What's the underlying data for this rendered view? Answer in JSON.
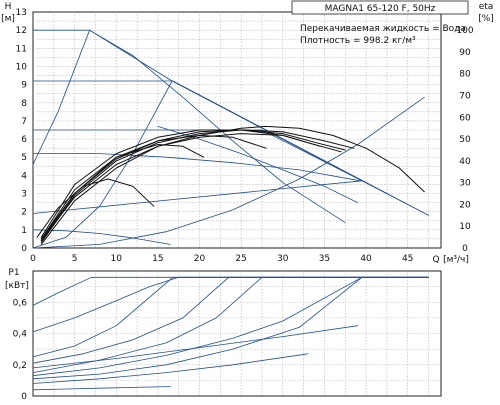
{
  "chart_data": [
    {
      "type": "line",
      "title": "MAGNA1 65-120 F, 50Hz",
      "info_lines": [
        "Перекачиваемая жидкость = Вода",
        "Плотность = 998.2 кг/м³"
      ],
      "ylabel": "H",
      "yunit": "[м]",
      "xlabel": "Q",
      "xunit": "[м³/ч]",
      "y2label": "eta",
      "y2unit": "[%]",
      "xlim": [
        0,
        49
      ],
      "ylim": [
        0,
        13
      ],
      "y2lim": [
        0,
        108.33
      ],
      "xticks": [
        0,
        5,
        10,
        15,
        20,
        25,
        30,
        35,
        40,
        45
      ],
      "yticks": [
        0,
        1,
        2,
        3,
        4,
        5,
        6,
        7,
        8,
        9,
        10,
        11,
        12,
        13
      ],
      "y2ticks": [
        0,
        10,
        20,
        30,
        40,
        50,
        60,
        70,
        80,
        90,
        100
      ],
      "grid": true,
      "series": [
        {
          "name": "",
          "kind": "max_curve",
          "color": "#1f4e8c",
          "x": [
            0,
            6.8,
            16.7,
            39.5,
            47.5
          ],
          "y": [
            12.0,
            12.0,
            9.2,
            3.7,
            1.8
          ]
        },
        {
          "name": "",
          "kind": "const_curve",
          "color": "#1f4e8c",
          "x": [
            0,
            16.8,
            47.5
          ],
          "y": [
            9.2,
            9.2,
            1.8
          ]
        },
        {
          "name": "",
          "kind": "const_curve",
          "color": "#1f4e8c",
          "x": [
            0,
            27.5,
            39.5
          ],
          "y": [
            6.5,
            6.5,
            3.7
          ]
        },
        {
          "name": "",
          "kind": "const_curve",
          "color": "#1f4e8c",
          "x": [
            0,
            8,
            16,
            24,
            32,
            39.3
          ],
          "y": [
            5.2,
            5.2,
            5.0,
            4.7,
            4.3,
            3.7
          ]
        },
        {
          "name": "",
          "kind": "prop_curve",
          "color": "#1f4e8c",
          "x": [
            0,
            39.5
          ],
          "y": [
            1.9,
            3.7
          ]
        },
        {
          "name": "",
          "kind": "min_curve",
          "color": "#1f4e8c",
          "x": [
            0,
            4,
            8,
            12,
            16.5
          ],
          "y": [
            1.0,
            0.95,
            0.8,
            0.55,
            0.2
          ]
        },
        {
          "name": "",
          "kind": "system_curve",
          "color": "#1f4e8c",
          "x": [
            0,
            8,
            16,
            24,
            32,
            39,
            47
          ],
          "y": [
            0,
            0.2,
            0.9,
            2.1,
            3.8,
            5.7,
            8.3
          ]
        },
        {
          "name": "",
          "kind": "system_curve",
          "color": "#1f4e8c",
          "x": [
            0,
            4,
            8,
            12,
            16.7
          ],
          "y": [
            0,
            0.6,
            2.3,
            5.2,
            9.2
          ]
        },
        {
          "name": "",
          "kind": "system_curve",
          "color": "#1f4e8c",
          "x": [
            0,
            3,
            6.8
          ],
          "y": [
            4.6,
            7.5,
            12.0
          ]
        },
        {
          "name": "",
          "kind": "system_curve",
          "color": "#1f4e8c",
          "x": [
            6.8,
            12,
            18,
            24,
            30,
            37.5
          ],
          "y": [
            12.0,
            10.6,
            8.3,
            5.9,
            3.6,
            1.4
          ]
        },
        {
          "name": "",
          "kind": "system_curve",
          "color": "#1f4e8c",
          "x": [
            15,
            20,
            25,
            30,
            35,
            39
          ],
          "y": [
            6.7,
            6.0,
            5.2,
            4.3,
            3.4,
            2.5
          ]
        },
        {
          "name": "",
          "kind": "eta",
          "color": "#111111",
          "x": [
            1,
            5,
            10,
            15,
            20,
            25,
            28,
            32,
            36,
            40,
            44,
            47
          ],
          "y": [
            0.2,
            2.6,
            4.4,
            5.6,
            6.2,
            6.6,
            6.7,
            6.6,
            6.2,
            5.5,
            4.4,
            3.1
          ]
        },
        {
          "name": "",
          "kind": "eta",
          "color": "#111111",
          "x": [
            1,
            5,
            10,
            15,
            20,
            25,
            30,
            35,
            38.5
          ],
          "y": [
            0.3,
            2.9,
            4.8,
            5.8,
            6.3,
            6.5,
            6.4,
            5.9,
            5.5
          ]
        },
        {
          "name": "",
          "kind": "eta",
          "color": "#111111",
          "x": [
            1,
            5,
            10,
            15,
            20,
            25,
            30,
            33,
            37
          ],
          "y": [
            0.5,
            3.2,
            5.0,
            5.9,
            6.4,
            6.5,
            6.2,
            5.8,
            5.3
          ]
        },
        {
          "name": "",
          "kind": "eta",
          "color": "#111111",
          "x": [
            1,
            5,
            10,
            15,
            20,
            25,
            30,
            34,
            37.5
          ],
          "y": [
            0.6,
            3.5,
            5.2,
            6.1,
            6.5,
            6.5,
            6.3,
            5.8,
            5.4
          ]
        },
        {
          "name": "",
          "kind": "eta",
          "color": "#111111",
          "x": [
            1,
            5,
            10,
            15,
            20,
            25,
            30,
            34.5
          ],
          "y": [
            0.4,
            2.8,
            4.6,
            5.6,
            6.1,
            6.3,
            6.2,
            5.6
          ]
        },
        {
          "name": "",
          "kind": "eta",
          "color": "#111111",
          "x": [
            1,
            5,
            10,
            15,
            20,
            24,
            28
          ],
          "y": [
            0.4,
            3.0,
            4.9,
            5.9,
            6.2,
            6.1,
            5.5
          ]
        },
        {
          "name": "",
          "kind": "eta",
          "color": "#111111",
          "x": [
            1,
            5,
            10,
            15,
            18,
            20.5
          ],
          "y": [
            0.5,
            3.0,
            5.0,
            5.7,
            5.6,
            5.0
          ]
        },
        {
          "name": "",
          "kind": "eta",
          "color": "#111111",
          "x": [
            0.5,
            3,
            6,
            9,
            12,
            14.5
          ],
          "y": [
            0.6,
            2.2,
            3.4,
            3.8,
            3.4,
            2.3
          ]
        }
      ]
    },
    {
      "type": "line",
      "title": "",
      "ylabel": "P1",
      "yunit": "[кВт]",
      "xlim": [
        0,
        49
      ],
      "ylim": [
        0,
        0.8
      ],
      "yticks": [
        0,
        0.2,
        0.4,
        0.6
      ],
      "ytick_labels": [
        "0",
        "0,2",
        "0,4",
        "0,6"
      ],
      "grid": true,
      "series": [
        {
          "name": "",
          "color": "#1f4e8c",
          "x": [
            0,
            3,
            7,
            47.5
          ],
          "y": [
            0.58,
            0.66,
            0.76,
            0.76
          ]
        },
        {
          "name": "",
          "color": "#1f4e8c",
          "x": [
            0,
            5,
            10,
            14,
            17.5,
            47.5
          ],
          "y": [
            0.41,
            0.5,
            0.61,
            0.7,
            0.76,
            0.76
          ]
        },
        {
          "name": "",
          "color": "#1f4e8c",
          "x": [
            0,
            5,
            10,
            16.8,
            47.5
          ],
          "y": [
            0.25,
            0.32,
            0.45,
            0.76,
            0.76
          ]
        },
        {
          "name": "",
          "color": "#1f4e8c",
          "x": [
            0,
            6,
            12,
            18,
            23.5,
            47.5
          ],
          "y": [
            0.21,
            0.27,
            0.36,
            0.5,
            0.76,
            0.76
          ]
        },
        {
          "name": "",
          "color": "#1f4e8c",
          "x": [
            0,
            8,
            16,
            22,
            27.5,
            47.5
          ],
          "y": [
            0.15,
            0.23,
            0.34,
            0.5,
            0.76,
            0.76
          ]
        },
        {
          "name": "",
          "color": "#1f4e8c",
          "x": [
            0,
            8,
            16,
            24,
            32,
            39.5,
            47.5
          ],
          "y": [
            0.11,
            0.14,
            0.2,
            0.3,
            0.44,
            0.76,
            0.76
          ]
        },
        {
          "name": "",
          "color": "#1f4e8c",
          "x": [
            0,
            8,
            16,
            24,
            30,
            39.5
          ],
          "y": [
            0.13,
            0.18,
            0.26,
            0.37,
            0.48,
            0.76
          ]
        },
        {
          "name": "",
          "color": "#1f4e8c",
          "x": [
            0,
            10,
            20,
            30,
            39
          ],
          "y": [
            0.18,
            0.24,
            0.31,
            0.38,
            0.45
          ]
        },
        {
          "name": "",
          "color": "#1f4e8c",
          "x": [
            0,
            8,
            16,
            24,
            33
          ],
          "y": [
            0.08,
            0.11,
            0.15,
            0.2,
            0.27
          ]
        },
        {
          "name": "",
          "color": "#1f4e8c",
          "x": [
            0,
            4,
            8,
            12,
            16.5
          ],
          "y": [
            0.04,
            0.045,
            0.05,
            0.055,
            0.06
          ]
        }
      ]
    }
  ]
}
